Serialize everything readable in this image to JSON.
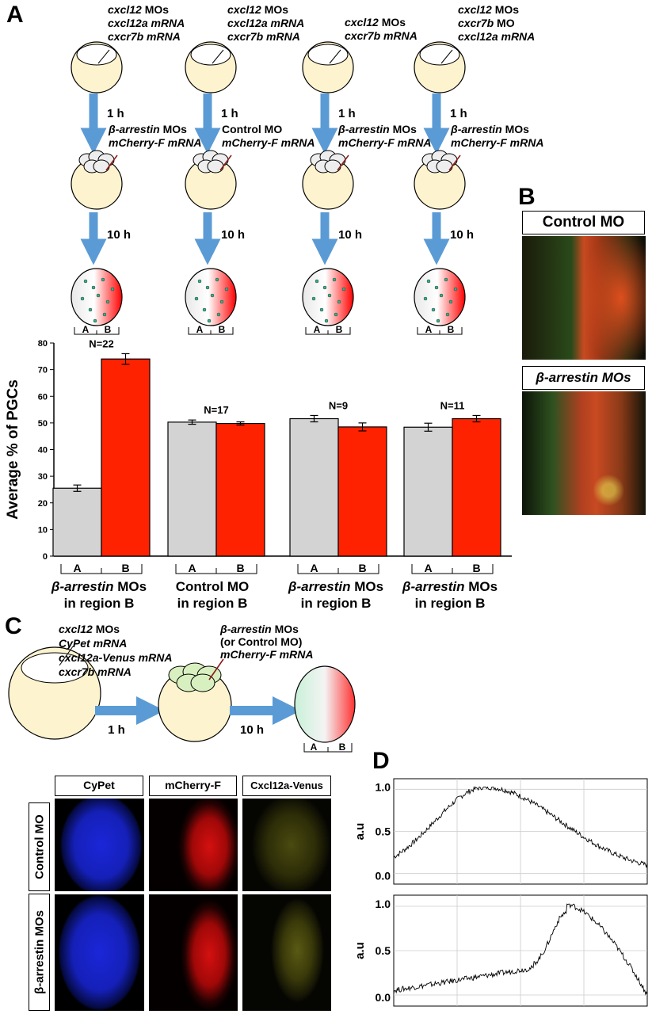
{
  "panels": {
    "a": "A",
    "b": "B",
    "c": "C",
    "d": "D"
  },
  "panel_a": {
    "groups": [
      {
        "injection1": [
          "cxcl12 MOs",
          "cxcl12a mRNA",
          "cxcr7b mRNA"
        ],
        "injection2": [
          "β-arrestin MOs",
          "mCherry-F mRNA"
        ],
        "condition": [
          "β-arrestin MOs",
          "in region B"
        ]
      },
      {
        "injection1": [
          "cxcl12 MOs",
          "cxcl12a mRNA",
          "cxcr7b mRNA"
        ],
        "injection2": [
          "Control MO",
          "mCherry-F mRNA"
        ],
        "condition": [
          "Control MO",
          "in region B"
        ]
      },
      {
        "injection1": [
          "cxcl12 MOs",
          "cxcr7b mRNA"
        ],
        "injection2": [
          "β-arrestin MOs",
          "mCherry-F mRNA"
        ],
        "condition": [
          "β-arrestin MOs",
          "in region B"
        ]
      },
      {
        "injection1": [
          "cxcl12 MOs",
          "cxcr7b MO",
          "cxcl12a mRNA"
        ],
        "injection2": [
          "β-arrestin MOs",
          "mCherry-F mRNA"
        ],
        "condition": [
          "β-arrestin MOs",
          "in region B"
        ]
      }
    ],
    "time1": "1 h",
    "time2": "10 h",
    "region_a": "A",
    "region_b": "B"
  },
  "panel_b": {
    "labels": [
      "Control MO",
      "β-arrestin MOs"
    ]
  },
  "panel_c": {
    "injection1": [
      "cxcl12 MOs",
      "CyPet mRNA",
      "cxcl12a-Venus mRNA",
      "cxcr7b mRNA"
    ],
    "injection2": [
      "β-arrestin MOs",
      "(or Control MO)",
      "mCherry-F mRNA"
    ],
    "time1": "1 h",
    "time2": "10 h",
    "region_a": "A",
    "region_b": "B",
    "channels": [
      "CyPet",
      "mCherry-F",
      "Cxcl12a-Venus"
    ],
    "rows": [
      "Control MO",
      "β-arrestin MOs"
    ]
  },
  "panel_d": {
    "ylabel": "a.u",
    "yticks": [
      "1.0",
      "0.5",
      "0.0"
    ]
  },
  "chart_data": {
    "type": "bar",
    "ylabel": "Average % of PGCs",
    "ylim": [
      0,
      80
    ],
    "yticks": [
      0,
      10,
      20,
      30,
      40,
      50,
      60,
      70,
      80
    ],
    "categories": [
      "A",
      "B",
      "A",
      "B",
      "A",
      "B",
      "A",
      "B"
    ],
    "values": [
      25.5,
      74.0,
      50.3,
      49.8,
      51.6,
      48.5,
      48.4,
      51.6
    ],
    "errors": [
      1.2,
      2.0,
      0.8,
      0.6,
      1.2,
      1.5,
      1.5,
      1.2
    ],
    "colors": [
      "#d3d3d3",
      "#ff2200"
    ],
    "groups": [
      {
        "n_label": "N=22"
      },
      {
        "n_label": "N=17"
      },
      {
        "n_label": "N=9"
      },
      {
        "n_label": "N=11"
      }
    ]
  }
}
